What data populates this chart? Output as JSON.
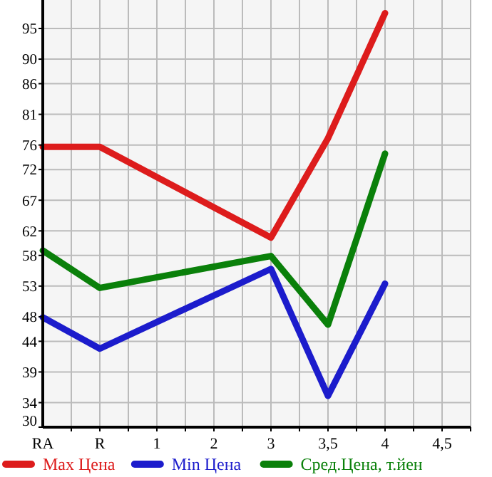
{
  "chart_data": {
    "type": "line",
    "categories": [
      "RA",
      "R",
      "1",
      "2",
      "3",
      "3,5",
      "4",
      "4,5"
    ],
    "series": [
      {
        "name": "Max Цена",
        "color": "#dd1c1c",
        "values": [
          75.7,
          75.7,
          null,
          null,
          60.9,
          77.1,
          97.5,
          null
        ]
      },
      {
        "name": "Min Цена",
        "color": "#1c1ccc",
        "values": [
          47.9,
          42.8,
          null,
          null,
          55.8,
          35.1,
          53.4,
          null
        ]
      },
      {
        "name": "Сред.Цена, т.йен",
        "color": "#0a800a",
        "values": [
          58.8,
          52.7,
          null,
          null,
          57.9,
          46.7,
          74.6,
          null
        ]
      }
    ],
    "ylim": [
      30,
      99.64
    ],
    "yticks": [
      30,
      34,
      39,
      44,
      48,
      53,
      58,
      62,
      67,
      72,
      76,
      81,
      86,
      90,
      95
    ],
    "grid": true,
    "legend": "bottom",
    "marker": "none",
    "line_style": "solid"
  }
}
